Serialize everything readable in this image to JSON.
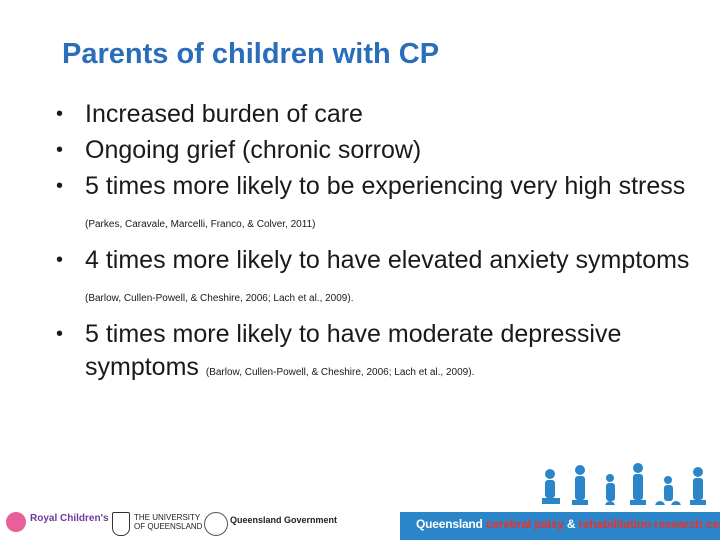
{
  "slide": {
    "title": "Parents of children with CP",
    "bullets": [
      {
        "text": "Increased burden of care",
        "cite": ""
      },
      {
        "text": "Ongoing grief (chronic sorrow)",
        "cite": ""
      },
      {
        "text": "5 times more likely to be experiencing very high stress",
        "cite": "(Parkes, Caravale, Marcelli, Franco, & Colver, 2011)"
      },
      {
        "text": "4 times more likely to have elevated anxiety symptoms",
        "cite": "(Barlow, Cullen-Powell, & Cheshire, 2006; Lach et al., 2009)."
      },
      {
        "text": "5 times more likely to have moderate depressive symptoms",
        "cite": "(Barlow, Cullen-Powell, & Cheshire, 2006; Lach et al., 2009)."
      }
    ],
    "bullet_glyph": "•"
  },
  "footer": {
    "centre_part1": "Queensland ",
    "centre_part2": "cerebral palsy",
    "centre_part3": " & ",
    "centre_part4": "rehabilitation research centre",
    "logo_rch": "Royal Children's",
    "logo_uq_line1": "THE UNIVERSITY",
    "logo_uq_line2": "OF QUEENSLAND",
    "logo_qg_line1": "Queensland Government",
    "colors": {
      "band": "#2a86c8",
      "accent": "#e8322d",
      "title": "#2a6ebb"
    }
  }
}
